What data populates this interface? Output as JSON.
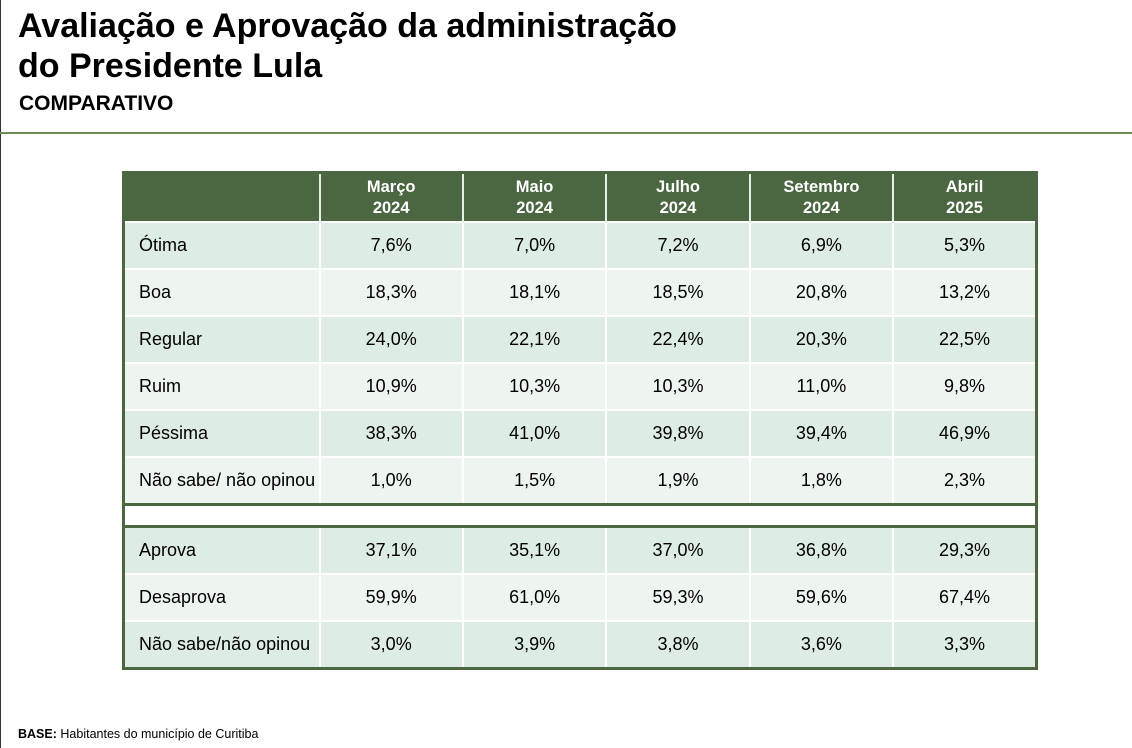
{
  "header": {
    "title_line1": "Avaliação e Aprovação da administração",
    "title_line2": "do Presidente Lula",
    "subtitle": "COMPARATIVO"
  },
  "colors": {
    "header_green": "#4a6741",
    "row_odd": "#deede3",
    "row_even": "#eef5f0"
  },
  "table": {
    "columns": [
      {
        "month": "Março",
        "year": "2024"
      },
      {
        "month": "Maio",
        "year": "2024"
      },
      {
        "month": "Julho",
        "year": "2024"
      },
      {
        "month": "Setembro",
        "year": "2024"
      },
      {
        "month": "Abril",
        "year": "2025"
      }
    ],
    "evaluation_rows": [
      {
        "label": "Ótima",
        "values": [
          "7,6%",
          "7,0%",
          "7,2%",
          "6,9%",
          "5,3%"
        ]
      },
      {
        "label": "Boa",
        "values": [
          "18,3%",
          "18,1%",
          "18,5%",
          "20,8%",
          "13,2%"
        ]
      },
      {
        "label": "Regular",
        "values": [
          "24,0%",
          "22,1%",
          "22,4%",
          "20,3%",
          "22,5%"
        ]
      },
      {
        "label": "Ruim",
        "values": [
          "10,9%",
          "10,3%",
          "10,3%",
          "11,0%",
          "9,8%"
        ]
      },
      {
        "label": "Péssima",
        "values": [
          "38,3%",
          "41,0%",
          "39,8%",
          "39,4%",
          "46,9%"
        ]
      },
      {
        "label": "Não sabe/ não opinou",
        "values": [
          "1,0%",
          "1,5%",
          "1,9%",
          "1,8%",
          "2,3%"
        ]
      }
    ],
    "approval_rows": [
      {
        "label": "Aprova",
        "values": [
          "37,1%",
          "35,1%",
          "37,0%",
          "36,8%",
          "29,3%"
        ]
      },
      {
        "label": "Desaprova",
        "values": [
          "59,9%",
          "61,0%",
          "59,3%",
          "59,6%",
          "67,4%"
        ]
      },
      {
        "label": "Não sabe/não opinou",
        "values": [
          "3,0%",
          "3,9%",
          "3,8%",
          "3,6%",
          "3,3%"
        ]
      }
    ]
  },
  "footer": {
    "base_label": "BASE:",
    "base_text": "Habitantes do município de Curitiba"
  }
}
